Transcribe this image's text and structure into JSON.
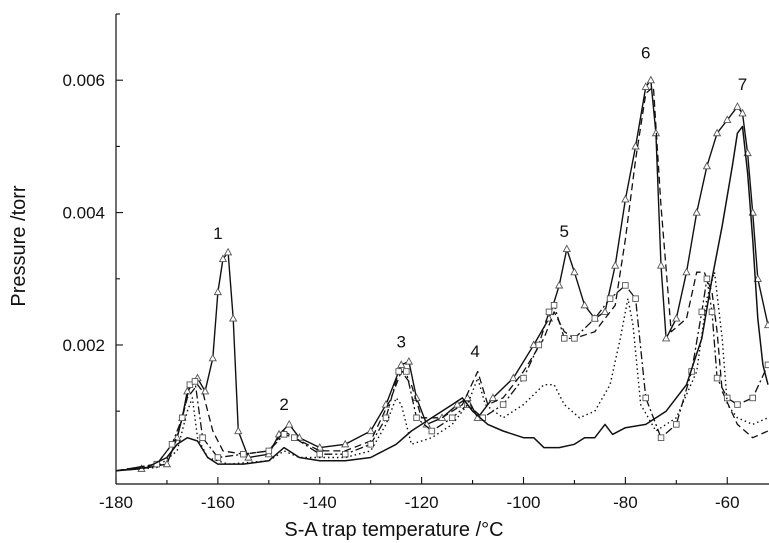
{
  "chart_data": {
    "type": "line",
    "title": "",
    "xlabel": "S-A trap temperature /°C",
    "ylabel": "Pressure /torr",
    "xlim": [
      -180,
      -52
    ],
    "ylim": [
      -0.0001,
      0.007
    ],
    "x_ticks": [
      -180,
      -160,
      -140,
      -120,
      -100,
      -80,
      -60
    ],
    "x_tick_labels": [
      "-180",
      "-160",
      "-140",
      "-120",
      "-100",
      "-80",
      "-60"
    ],
    "y_ticks": [
      0.002,
      0.004,
      0.006
    ],
    "y_tick_labels": [
      "0.002",
      "0.004",
      "0.006"
    ],
    "grid": false,
    "legend": "none",
    "annotations": [
      {
        "text": "1",
        "x": -160,
        "y": 0.0036
      },
      {
        "text": "2",
        "x": -147,
        "y": 0.00102
      },
      {
        "text": "3",
        "x": -124,
        "y": 0.00196
      },
      {
        "text": "4",
        "x": -109.5,
        "y": 0.00182
      },
      {
        "text": "5",
        "x": -92,
        "y": 0.00363
      },
      {
        "text": "6",
        "x": -76,
        "y": 0.00633
      },
      {
        "text": "7",
        "x": -57,
        "y": 0.00585
      }
    ],
    "series": [
      {
        "style": "solid-triangles",
        "points": [
          [
            -180,
            0.0001
          ],
          [
            -175,
            0.00013
          ],
          [
            -170,
            0.0002
          ],
          [
            -168,
            0.0006
          ],
          [
            -167,
            0.0009
          ],
          [
            -166,
            0.0013
          ],
          [
            -164,
            0.0015
          ],
          [
            -162.5,
            0.0013
          ],
          [
            -161,
            0.0018
          ],
          [
            -160,
            0.0028
          ],
          [
            -159,
            0.0033
          ],
          [
            -158,
            0.0034
          ],
          [
            -157,
            0.0024
          ],
          [
            -156,
            0.0007
          ],
          [
            -154,
            0.0003
          ],
          [
            -150,
            0.00035
          ],
          [
            -148,
            0.00065
          ],
          [
            -146,
            0.0008
          ],
          [
            -144,
            0.0006
          ],
          [
            -140,
            0.00045
          ],
          [
            -135,
            0.0005
          ],
          [
            -130,
            0.0007
          ],
          [
            -127,
            0.0011
          ],
          [
            -124,
            0.0017
          ],
          [
            -122.5,
            0.00175
          ],
          [
            -121,
            0.0012
          ],
          [
            -119,
            0.0008
          ],
          [
            -116,
            0.0009
          ],
          [
            -113,
            0.0011
          ],
          [
            -111,
            0.0012
          ],
          [
            -109,
            0.0009
          ],
          [
            -106,
            0.0012
          ],
          [
            -102,
            0.0015
          ],
          [
            -98,
            0.002
          ],
          [
            -95,
            0.0024
          ],
          [
            -93,
            0.0029
          ],
          [
            -91.5,
            0.00345
          ],
          [
            -90,
            0.0031
          ],
          [
            -88,
            0.0026
          ],
          [
            -86,
            0.0024
          ],
          [
            -84,
            0.0025
          ],
          [
            -82,
            0.0032
          ],
          [
            -80,
            0.0042
          ],
          [
            -78,
            0.005
          ],
          [
            -76,
            0.0059
          ],
          [
            -75,
            0.006
          ],
          [
            -74,
            0.0052
          ],
          [
            -73,
            0.0032
          ],
          [
            -72,
            0.0021
          ],
          [
            -70,
            0.0024
          ],
          [
            -68,
            0.0031
          ],
          [
            -66,
            0.004
          ],
          [
            -64,
            0.0047
          ],
          [
            -62,
            0.0052
          ],
          [
            -60,
            0.0054
          ],
          [
            -58,
            0.0056
          ],
          [
            -57,
            0.0055
          ],
          [
            -56,
            0.0049
          ],
          [
            -55,
            0.004
          ],
          [
            -54,
            0.003
          ],
          [
            -52,
            0.0023
          ]
        ]
      },
      {
        "style": "dashed",
        "points": [
          [
            -180,
            0.0001
          ],
          [
            -172,
            0.0002
          ],
          [
            -168,
            0.0006
          ],
          [
            -166,
            0.0012
          ],
          [
            -164,
            0.0014
          ],
          [
            -163,
            0.0013
          ],
          [
            -161,
            0.0007
          ],
          [
            -159,
            0.0004
          ],
          [
            -155,
            0.00035
          ],
          [
            -150,
            0.0004
          ],
          [
            -147,
            0.0007
          ],
          [
            -145,
            0.0006
          ],
          [
            -140,
            0.0004
          ],
          [
            -135,
            0.0004
          ],
          [
            -130,
            0.00055
          ],
          [
            -126,
            0.0012
          ],
          [
            -124,
            0.0016
          ],
          [
            -122,
            0.0014
          ],
          [
            -120,
            0.0009
          ],
          [
            -116,
            0.0009
          ],
          [
            -112,
            0.0011
          ],
          [
            -109,
            0.0016
          ],
          [
            -107,
            0.0011
          ],
          [
            -104,
            0.0012
          ],
          [
            -100,
            0.0016
          ],
          [
            -96,
            0.0021
          ],
          [
            -94,
            0.0025
          ],
          [
            -92,
            0.0022
          ],
          [
            -90,
            0.0021
          ],
          [
            -86,
            0.0022
          ],
          [
            -82,
            0.0026
          ],
          [
            -80,
            0.0036
          ],
          [
            -78,
            0.0048
          ],
          [
            -76,
            0.0058
          ],
          [
            -74.5,
            0.0059
          ],
          [
            -73,
            0.0041
          ],
          [
            -71,
            0.0022
          ],
          [
            -68,
            0.0024
          ],
          [
            -66,
            0.0031
          ],
          [
            -64.5,
            0.0031
          ],
          [
            -63,
            0.0028
          ],
          [
            -62,
            0.0022
          ],
          [
            -61,
            0.0013
          ],
          [
            -58,
            0.0008
          ],
          [
            -55,
            0.0006
          ],
          [
            -52,
            0.0007
          ]
        ]
      },
      {
        "style": "dash-dot-squares",
        "points": [
          [
            -180,
            0.0001
          ],
          [
            -172,
            0.0002
          ],
          [
            -169,
            0.0005
          ],
          [
            -167,
            0.0009
          ],
          [
            -165.5,
            0.0014
          ],
          [
            -164.5,
            0.00145
          ],
          [
            -163,
            0.0006
          ],
          [
            -160,
            0.0003
          ],
          [
            -155,
            0.00035
          ],
          [
            -150,
            0.0004
          ],
          [
            -147,
            0.00065
          ],
          [
            -145,
            0.0006
          ],
          [
            -140,
            0.00035
          ],
          [
            -135,
            0.00035
          ],
          [
            -130,
            0.0005
          ],
          [
            -127,
            0.0009
          ],
          [
            -124.5,
            0.0016
          ],
          [
            -123,
            0.0016
          ],
          [
            -121,
            0.0009
          ],
          [
            -118,
            0.0007
          ],
          [
            -114,
            0.0009
          ],
          [
            -111,
            0.0011
          ],
          [
            -108,
            0.0009
          ],
          [
            -104,
            0.0011
          ],
          [
            -100,
            0.0015
          ],
          [
            -97,
            0.002
          ],
          [
            -95,
            0.0025
          ],
          [
            -94,
            0.0026
          ],
          [
            -92,
            0.0021
          ],
          [
            -90,
            0.0021
          ],
          [
            -86,
            0.0024
          ],
          [
            -83,
            0.0027
          ],
          [
            -80,
            0.0029
          ],
          [
            -78,
            0.0027
          ],
          [
            -76,
            0.0012
          ],
          [
            -73,
            0.0006
          ],
          [
            -70,
            0.0008
          ],
          [
            -67,
            0.0016
          ],
          [
            -65,
            0.0025
          ],
          [
            -64,
            0.003
          ],
          [
            -63,
            0.0025
          ],
          [
            -62,
            0.0015
          ],
          [
            -60,
            0.0012
          ],
          [
            -58,
            0.0011
          ],
          [
            -55,
            0.0012
          ],
          [
            -52,
            0.0017
          ]
        ]
      },
      {
        "style": "dotted",
        "points": [
          [
            -180,
            0.0001
          ],
          [
            -172,
            0.00015
          ],
          [
            -168,
            0.0004
          ],
          [
            -166,
            0.001
          ],
          [
            -165,
            0.0012
          ],
          [
            -164,
            0.0006
          ],
          [
            -162,
            0.0003
          ],
          [
            -158,
            0.0002
          ],
          [
            -150,
            0.00025
          ],
          [
            -147,
            0.0004
          ],
          [
            -144,
            0.0003
          ],
          [
            -140,
            0.0003
          ],
          [
            -135,
            0.0003
          ],
          [
            -130,
            0.0004
          ],
          [
            -127,
            0.0008
          ],
          [
            -125,
            0.0012
          ],
          [
            -124,
            0.0011
          ],
          [
            -122,
            0.0005
          ],
          [
            -118,
            0.0006
          ],
          [
            -114,
            0.0008
          ],
          [
            -111,
            0.0011
          ],
          [
            -109,
            0.0015
          ],
          [
            -107.5,
            0.0011
          ],
          [
            -104,
            0.0009
          ],
          [
            -100,
            0.0011
          ],
          [
            -96,
            0.0014
          ],
          [
            -94,
            0.0014
          ],
          [
            -92,
            0.0011
          ],
          [
            -89,
            0.0009
          ],
          [
            -86,
            0.001
          ],
          [
            -83,
            0.0014
          ],
          [
            -81,
            0.0021
          ],
          [
            -79.5,
            0.0027
          ],
          [
            -78.5,
            0.0023
          ],
          [
            -77,
            0.0011
          ],
          [
            -74,
            0.0007
          ],
          [
            -70,
            0.0009
          ],
          [
            -66,
            0.0016
          ],
          [
            -64,
            0.0027
          ],
          [
            -62.5,
            0.0031
          ],
          [
            -61,
            0.0021
          ],
          [
            -60,
            0.0011
          ],
          [
            -58,
            0.0009
          ],
          [
            -55,
            0.0008
          ],
          [
            -52,
            0.0009
          ]
        ]
      },
      {
        "style": "solid",
        "points": [
          [
            -180,
            0.0001
          ],
          [
            -174,
            0.00015
          ],
          [
            -170,
            0.0003
          ],
          [
            -168,
            0.0005
          ],
          [
            -166,
            0.0006
          ],
          [
            -164,
            0.00055
          ],
          [
            -162,
            0.0003
          ],
          [
            -160,
            0.0002
          ],
          [
            -155,
            0.0002
          ],
          [
            -150,
            0.00025
          ],
          [
            -147,
            0.00045
          ],
          [
            -144,
            0.0003
          ],
          [
            -140,
            0.00025
          ],
          [
            -135,
            0.00025
          ],
          [
            -130,
            0.0003
          ],
          [
            -125,
            0.0005
          ],
          [
            -122,
            0.0007
          ],
          [
            -118,
            0.0009
          ],
          [
            -114,
            0.0011
          ],
          [
            -112,
            0.0012
          ],
          [
            -110,
            0.001
          ],
          [
            -107,
            0.0008
          ],
          [
            -104,
            0.0007
          ],
          [
            -100,
            0.0006
          ],
          [
            -98,
            0.0006
          ],
          [
            -96,
            0.00045
          ],
          [
            -93,
            0.00045
          ],
          [
            -90,
            0.0005
          ],
          [
            -88,
            0.0006
          ],
          [
            -86,
            0.0006
          ],
          [
            -84,
            0.0008
          ],
          [
            -82.5,
            0.00065
          ],
          [
            -80,
            0.00075
          ],
          [
            -76,
            0.0008
          ],
          [
            -72,
            0.001
          ],
          [
            -68,
            0.0014
          ],
          [
            -65,
            0.0021
          ],
          [
            -63,
            0.003
          ],
          [
            -61,
            0.0038
          ],
          [
            -59,
            0.0047
          ],
          [
            -58,
            0.0052
          ],
          [
            -57,
            0.0053
          ],
          [
            -56,
            0.0046
          ],
          [
            -55,
            0.0036
          ],
          [
            -54,
            0.0024
          ],
          [
            -53,
            0.0017
          ],
          [
            -52,
            0.0014
          ]
        ]
      }
    ]
  }
}
